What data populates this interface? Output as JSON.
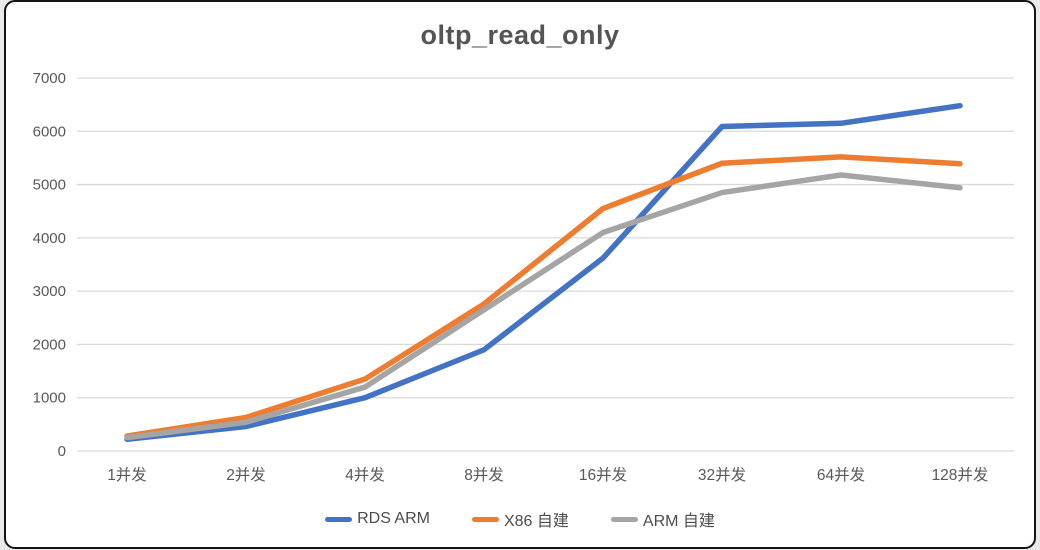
{
  "window": {
    "title": "oltp_read_only"
  },
  "chart_data": {
    "type": "line",
    "title": "oltp_read_only",
    "categories": [
      "1并发",
      "2并发",
      "4并发",
      "8并发",
      "16并发",
      "32并发",
      "64并发",
      "128并发"
    ],
    "series": [
      {
        "name": "RDS ARM",
        "color": "#4472C4",
        "values": [
          220,
          460,
          1000,
          1900,
          3620,
          6090,
          6150,
          6480
        ]
      },
      {
        "name": "X86 自建",
        "color": "#ED7D31",
        "values": [
          280,
          630,
          1350,
          2760,
          4550,
          5400,
          5520,
          5390
        ]
      },
      {
        "name": "ARM 自建",
        "color": "#A5A5A5",
        "values": [
          250,
          540,
          1200,
          2650,
          4100,
          4850,
          5180,
          4940
        ]
      }
    ],
    "xlabel": "",
    "ylabel": "",
    "ylim": [
      0,
      7000
    ],
    "ytick_step": 1000,
    "grid": "horizontal",
    "legend_position": "bottom",
    "colors": {
      "grid": "#D9D9D9",
      "axis_text": "#595959",
      "title_text": "#555555",
      "frame_border": "#141414",
      "background": "#FFFFFF"
    }
  }
}
